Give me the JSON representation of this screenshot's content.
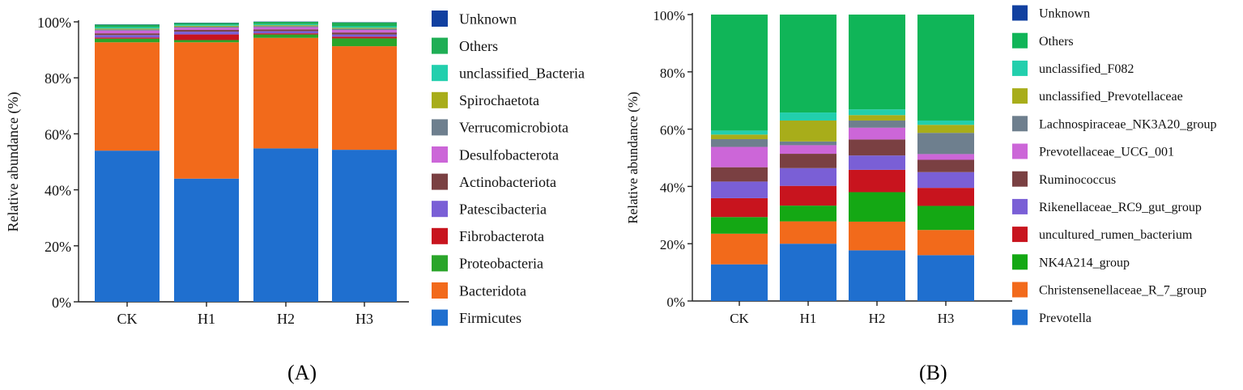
{
  "chart_data": [
    {
      "id": "A",
      "type": "bar",
      "stacked": true,
      "panel_label": "(A)",
      "title": "",
      "xlabel": "",
      "ylabel": "Relative abundance (%)",
      "ylim": [
        0,
        100
      ],
      "yticks": [
        "0%",
        "20%",
        "40%",
        "60%",
        "80%",
        "100%"
      ],
      "categories": [
        "CK",
        "H1",
        "H2",
        "H3"
      ],
      "series": [
        {
          "name": "Firmicutes",
          "color": "#1f6fcf",
          "values": [
            54.0,
            44.0,
            54.8,
            54.3
          ]
        },
        {
          "name": "Bacteridota",
          "color": "#f26a1b",
          "values": [
            38.7,
            48.7,
            39.5,
            37.0
          ]
        },
        {
          "name": "Proteobacteria",
          "color": "#2aa52a",
          "values": [
            1.3,
            0.8,
            1.2,
            2.8
          ]
        },
        {
          "name": "Fibrobacterota",
          "color": "#c8141e",
          "values": [
            0.4,
            2.0,
            0.4,
            0.6
          ]
        },
        {
          "name": "Patescibacteria",
          "color": "#7a5fd6",
          "values": [
            0.9,
            1.0,
            0.8,
            0.8
          ]
        },
        {
          "name": "Actinobacteriota",
          "color": "#7a4042",
          "values": [
            0.6,
            0.6,
            0.6,
            0.7
          ]
        },
        {
          "name": "Desulfobacterota",
          "color": "#cc66d8",
          "values": [
            1.0,
            0.8,
            0.8,
            0.9
          ]
        },
        {
          "name": "Verrucomicrobiota",
          "color": "#6e7f8e",
          "values": [
            0.4,
            0.4,
            0.4,
            0.5
          ]
        },
        {
          "name": "Spirochaetota",
          "color": "#a8ad1a",
          "values": [
            0.3,
            0.3,
            0.3,
            0.3
          ]
        },
        {
          "name": "unclassified_Bacteria",
          "color": "#22cfad",
          "values": [
            0.5,
            0.4,
            0.4,
            0.5
          ]
        },
        {
          "name": "Others",
          "color": "#1fae55",
          "values": [
            0.9,
            0.6,
            0.8,
            1.4
          ]
        },
        {
          "name": "Unknown",
          "color": "#1140a0",
          "values": [
            0.1,
            0.1,
            0.1,
            0.1
          ]
        }
      ]
    },
    {
      "id": "B",
      "type": "bar",
      "stacked": true,
      "panel_label": "(B)",
      "title": "",
      "xlabel": "",
      "ylabel": "Relative abundance (%)",
      "ylim": [
        0,
        100
      ],
      "yticks": [
        "0%",
        "20%",
        "40%",
        "60%",
        "80%",
        "100%"
      ],
      "categories": [
        "CK",
        "H1",
        "H2",
        "H3"
      ],
      "series": [
        {
          "name": "Prevotella",
          "color": "#1f6fcf",
          "values": [
            12.8,
            20.0,
            17.7,
            16.0
          ]
        },
        {
          "name": "Christensenellaceae_R_7_group",
          "color": "#f26a1b",
          "values": [
            10.7,
            7.8,
            10.0,
            8.8
          ]
        },
        {
          "name": "NK4A214_group",
          "color": "#14a814",
          "values": [
            5.8,
            5.5,
            10.3,
            8.4
          ]
        },
        {
          "name": "uncultured_rumen_bacterium",
          "color": "#c8141e",
          "values": [
            6.6,
            6.9,
            7.8,
            6.3
          ]
        },
        {
          "name": "Rikenellaceae_RC9_gut_group",
          "color": "#7a5fd6",
          "values": [
            5.8,
            6.2,
            5.0,
            5.5
          ]
        },
        {
          "name": "Ruminococcus",
          "color": "#7a4042",
          "values": [
            5.0,
            5.0,
            5.6,
            4.3
          ]
        },
        {
          "name": "Prevotellaceae_UCG_001",
          "color": "#cc66d8",
          "values": [
            7.1,
            3.0,
            4.1,
            2.0
          ]
        },
        {
          "name": "Lachnospiraceae_NK3A20_group",
          "color": "#6e7f8e",
          "values": [
            2.7,
            1.3,
            2.5,
            7.4
          ]
        },
        {
          "name": "unclassified_Prevotellaceae",
          "color": "#a8ad1a",
          "values": [
            1.6,
            7.3,
            1.9,
            2.8
          ]
        },
        {
          "name": "unclassified_F082",
          "color": "#22cfad",
          "values": [
            1.4,
            2.8,
            2.0,
            1.5
          ]
        },
        {
          "name": "Others",
          "color": "#10b558",
          "values": [
            40.5,
            34.2,
            33.1,
            37.0
          ]
        },
        {
          "name": "Unknown",
          "color": "#1140a0",
          "values": [
            0.0,
            0.0,
            0.0,
            0.0
          ]
        }
      ]
    }
  ]
}
